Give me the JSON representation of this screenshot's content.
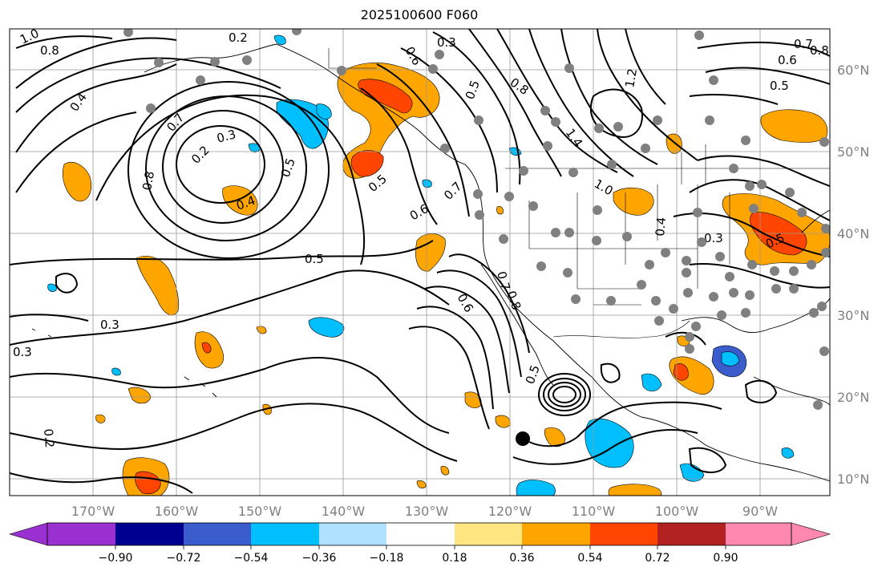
{
  "title": "2025100600 F060",
  "axes": {
    "lon_labels": [
      "170°W",
      "160°W",
      "150°W",
      "140°W",
      "130°W",
      "120°W",
      "110°W",
      "100°W",
      "90°W"
    ],
    "lat_labels": [
      "60°N",
      "50°N",
      "40°N",
      "30°N",
      "20°N",
      "10°N"
    ]
  },
  "colorbar": {
    "ticks": [
      "−0.90",
      "−0.72",
      "−0.54",
      "−0.36",
      "−0.18",
      "0.18",
      "0.36",
      "0.54",
      "0.72",
      "0.90"
    ],
    "colors": [
      "#9b30d0",
      "#000090",
      "#3a5ccc",
      "#00bfff",
      "#b0e2ff",
      "#ffffff",
      "#ffe680",
      "#ffa500",
      "#ff4500",
      "#b22222",
      "#ff88b0"
    ]
  },
  "contour_labels": [
    "1.0",
    "0.8",
    "0.2",
    "0.3",
    "0.6",
    "0.5",
    "0.4",
    "0.7",
    "0.3",
    "0.2",
    "0.5",
    "0.8",
    "0.4",
    "0.5",
    "0.6",
    "0.7",
    "0.5",
    "1.4",
    "1.2",
    "1.0",
    "0.8",
    "0.6",
    "0.5",
    "0.7",
    "0.8",
    "0.3",
    "0.4",
    "0.3",
    "0.2",
    "0.7",
    "0.8",
    "0.5",
    "0.6",
    "0.3",
    "0.5"
  ],
  "colors": {
    "orange": "#ffa500",
    "red": "#ff4500",
    "blue": "#00bfff",
    "darkblue": "#3a5ccc",
    "gray_dot": "#808080"
  }
}
